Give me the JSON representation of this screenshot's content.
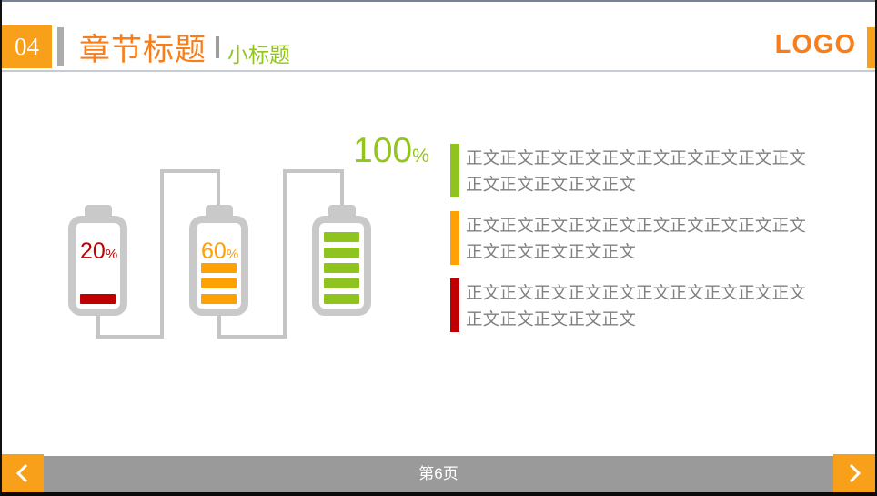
{
  "header": {
    "section_number": "04",
    "title": "章节标题",
    "subtitle": "小标题",
    "logo": "LOGO"
  },
  "colors": {
    "accent_orange": "#F9A01B",
    "title_orange": "#F87E1C",
    "green": "#8FC31F",
    "orange": "#FFA005",
    "red": "#C00000",
    "battery_gray": "#C9C9C9",
    "wire_gray": "#C5C5C5",
    "body_text_gray": "#7F7F7F",
    "footer_gray": "#9A9A9A"
  },
  "batteries": [
    {
      "label": "20",
      "unit": "%",
      "value": 20,
      "bars": 1,
      "color": "#C00000"
    },
    {
      "label": "60",
      "unit": "%",
      "value": 60,
      "bars": 3,
      "color": "#FFA005"
    },
    {
      "label": "100",
      "unit": "%",
      "value": 100,
      "bars": 5,
      "color": "#8FC31F"
    }
  ],
  "bullets": [
    {
      "color": "#8FC31F",
      "lines": [
        "正文正文正文正文正文正文正文正文正文正文",
        "正文正文正文正文正文"
      ]
    },
    {
      "color": "#FFA005",
      "lines": [
        "正文正文正文正文正文正文正文正文正文正文",
        "正文正文正文正文正文"
      ]
    },
    {
      "color": "#C00000",
      "lines": [
        "正文正文正文正文正文正文正文正文正文正文",
        "正文正文正文正文正文"
      ]
    }
  ],
  "footer": {
    "page_label": "第6页"
  },
  "icons": {
    "prev": "chevron-left",
    "next": "chevron-right"
  }
}
